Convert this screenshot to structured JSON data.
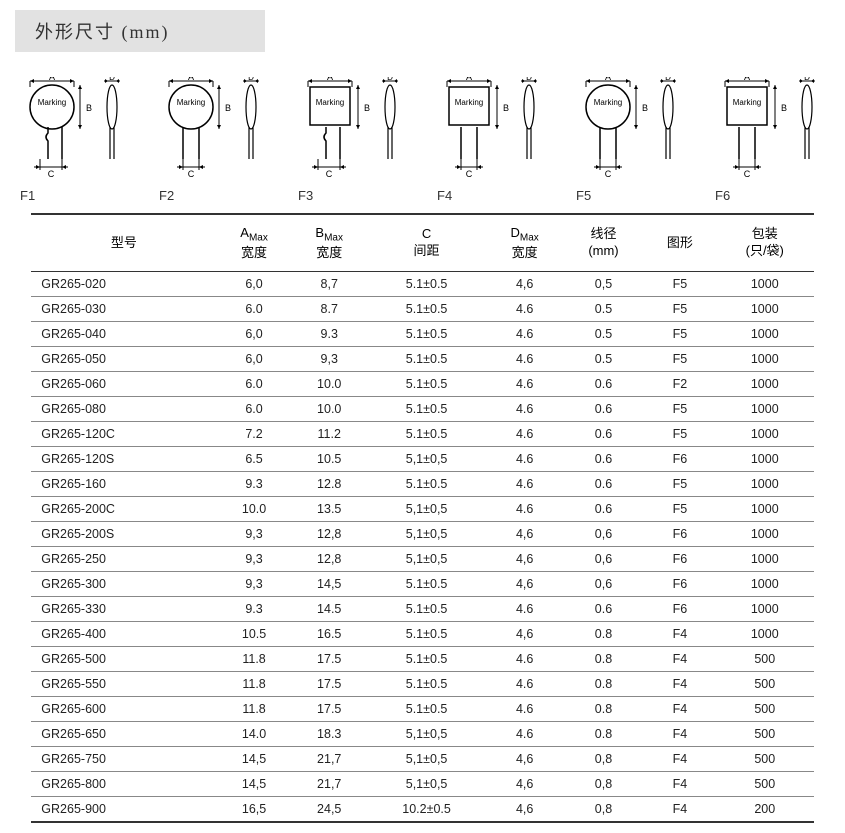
{
  "title": "外形尺寸 (mm)",
  "diagrams": [
    {
      "label": "F1",
      "shape": "round",
      "offset": true
    },
    {
      "label": "F2",
      "shape": "round",
      "offset": false
    },
    {
      "label": "F3",
      "shape": "rect",
      "offset": true
    },
    {
      "label": "F4",
      "shape": "rect",
      "offset": false
    },
    {
      "label": "F5",
      "shape": "round",
      "offset": false
    },
    {
      "label": "F6",
      "shape": "rect",
      "offset": false
    }
  ],
  "columns": [
    {
      "line1": "型号",
      "line2": ""
    },
    {
      "line1": "A",
      "sub": "Max",
      "line2": "宽度"
    },
    {
      "line1": "B",
      "sub": "Max",
      "line2": "宽度"
    },
    {
      "line1": "C",
      "line2": "间距"
    },
    {
      "line1": "D",
      "sub": "Max",
      "line2": "宽度"
    },
    {
      "line1": "线径",
      "line2": "(mm)"
    },
    {
      "line1": "图形",
      "line2": ""
    },
    {
      "line1": "包装",
      "line2": "(只/袋)"
    }
  ],
  "rows": [
    [
      "GR265-020",
      "6,0",
      "8,7",
      "5.1±0.5",
      "4,6",
      "0,5",
      "F5",
      "1000"
    ],
    [
      "GR265-030",
      "6.0",
      "8.7",
      "5.1±0.5",
      "4.6",
      "0.5",
      "F5",
      "1000"
    ],
    [
      "GR265-040",
      "6,0",
      "9.3",
      "5.1±0.5",
      "4.6",
      "0.5",
      "F5",
      "1000"
    ],
    [
      "GR265-050",
      "6,0",
      "9,3",
      "5.1±0.5",
      "4.6",
      "0.5",
      "F5",
      "1000"
    ],
    [
      "GR265-060",
      "6.0",
      "10.0",
      "5.1±0.5",
      "4.6",
      "0.6",
      "F2",
      "1000"
    ],
    [
      "GR265-080",
      "6.0",
      "10.0",
      "5.1±0.5",
      "4.6",
      "0.6",
      "F5",
      "1000"
    ],
    [
      "GR265-120C",
      "7.2",
      "11.2",
      "5.1±0.5",
      "4.6",
      "0.6",
      "F5",
      "1000"
    ],
    [
      "GR265-120S",
      "6.5",
      "10.5",
      "5,1±0,5",
      "4.6",
      "0.6",
      "F6",
      "1000"
    ],
    [
      "GR265-160",
      "9.3",
      "12.8",
      "5.1±0.5",
      "4.6",
      "0.6",
      "F5",
      "1000"
    ],
    [
      "GR265-200C",
      "10.0",
      "13.5",
      "5,1±0,5",
      "4.6",
      "0.6",
      "F5",
      "1000"
    ],
    [
      "GR265-200S",
      "9,3",
      "12,8",
      "5,1±0,5",
      "4,6",
      "0,6",
      "F6",
      "1000"
    ],
    [
      "GR265-250",
      "9,3",
      "12,8",
      "5,1±0,5",
      "4,6",
      "0,6",
      "F6",
      "1000"
    ],
    [
      "GR265-300",
      "9,3",
      "14,5",
      "5.1±0.5",
      "4,6",
      "0,6",
      "F6",
      "1000"
    ],
    [
      "GR265-330",
      "9.3",
      "14.5",
      "5.1±0.5",
      "4.6",
      "0.6",
      "F6",
      "1000"
    ],
    [
      "GR265-400",
      "10.5",
      "16.5",
      "5.1±0.5",
      "4,6",
      "0.8",
      "F4",
      "1000"
    ],
    [
      "GR265-500",
      "11.8",
      "17.5",
      "5.1±0.5",
      "4.6",
      "0.8",
      "F4",
      "500"
    ],
    [
      "GR265-550",
      "11.8",
      "17.5",
      "5.1±0.5",
      "4.6",
      "0.8",
      "F4",
      "500"
    ],
    [
      "GR265-600",
      "11.8",
      "17.5",
      "5.1±0.5",
      "4.6",
      "0.8",
      "F4",
      "500"
    ],
    [
      "GR265-650",
      "14.0",
      "18.3",
      "5,1±0,5",
      "4.6",
      "0.8",
      "F4",
      "500"
    ],
    [
      "GR265-750",
      "14,5",
      "21,7",
      "5,1±0,5",
      "4,6",
      "0,8",
      "F4",
      "500"
    ],
    [
      "GR265-800",
      "14,5",
      "21,7",
      "5,1±0,5",
      "4,6",
      "0,8",
      "F4",
      "500"
    ],
    [
      "GR265-900",
      "16,5",
      "24,5",
      "10.2±0.5",
      "4,6",
      "0,8",
      "F4",
      "200"
    ]
  ],
  "marking_text": "Marking",
  "dim_labels": {
    "A": "A",
    "B": "B",
    "C": "C",
    "D": "D"
  }
}
